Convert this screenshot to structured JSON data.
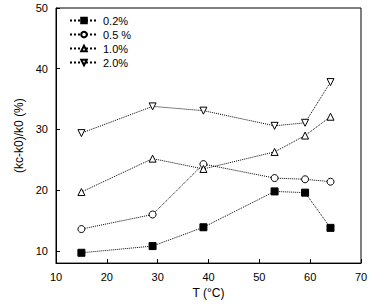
{
  "chart_data": {
    "type": "line",
    "x_label": "T (°C)",
    "y_label": "(kc-k0)/k0 (%)",
    "xlim": [
      10,
      70
    ],
    "xticks": [
      10,
      20,
      30,
      40,
      50,
      60,
      70
    ],
    "ylim": [
      8,
      50
    ],
    "yticks": [
      10,
      20,
      30,
      40,
      50
    ],
    "grid": false,
    "legend": "upper left",
    "line_style": "dotted",
    "series": [
      {
        "name": "0.2%",
        "color": "#000000",
        "marker": "filled_square",
        "x": [
          15,
          29,
          39,
          53,
          59,
          64
        ],
        "values": [
          9.7,
          10.8,
          13.9,
          19.8,
          19.6,
          13.8
        ]
      },
      {
        "name": "0.5 %",
        "color": "#000000",
        "marker": "open_circle",
        "x": [
          15,
          29,
          39,
          53,
          59,
          64
        ],
        "values": [
          13.6,
          16.0,
          24.3,
          22.0,
          21.8,
          21.4
        ]
      },
      {
        "name": "1.0%",
        "color": "#000000",
        "marker": "open_triangle_up",
        "x": [
          15,
          29,
          39,
          53,
          59,
          64
        ],
        "values": [
          19.7,
          25.2,
          23.5,
          26.3,
          29.0,
          32.1
        ]
      },
      {
        "name": "2.0%",
        "color": "#000000",
        "marker": "open_triangle_down",
        "x": [
          15,
          29,
          39,
          53,
          59,
          64
        ],
        "values": [
          29.4,
          33.8,
          33.1,
          30.6,
          31.1,
          37.8
        ]
      }
    ]
  }
}
